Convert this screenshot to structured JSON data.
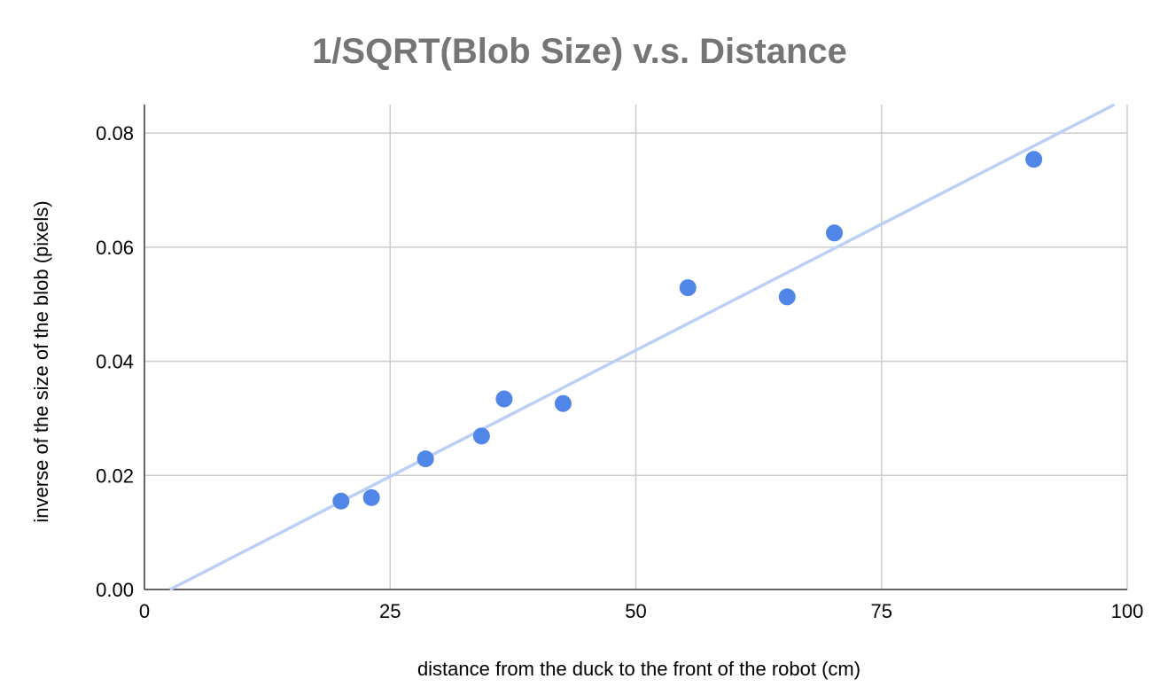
{
  "chart_data": {
    "type": "scatter",
    "title": "1/SQRT(Blob Size) v.s. Distance",
    "xlabel": "distance from the duck to the front of the robot (cm)",
    "ylabel": "inverse of the size of the blob (pixels)",
    "xlim": [
      0,
      100
    ],
    "ylim": [
      0,
      0.085
    ],
    "x_ticks": [
      0,
      25,
      50,
      75,
      100
    ],
    "x_tick_labels": [
      "0",
      "25",
      "50",
      "75",
      "100"
    ],
    "y_ticks": [
      0,
      0.02,
      0.04,
      0.06,
      0.08
    ],
    "y_tick_labels": [
      "0.00",
      "0.02",
      "0.04",
      "0.06",
      "0.08"
    ],
    "grid": true,
    "series": [
      {
        "points": [
          {
            "x": 20.0,
            "y": 0.0155
          },
          {
            "x": 23.1,
            "y": 0.0161
          },
          {
            "x": 28.6,
            "y": 0.0229
          },
          {
            "x": 34.3,
            "y": 0.0269
          },
          {
            "x": 36.6,
            "y": 0.0334
          },
          {
            "x": 42.6,
            "y": 0.0326
          },
          {
            "x": 55.3,
            "y": 0.0529
          },
          {
            "x": 65.4,
            "y": 0.0513
          },
          {
            "x": 70.2,
            "y": 0.0625
          },
          {
            "x": 90.5,
            "y": 0.0754
          }
        ],
        "color": "#4f86e8"
      }
    ],
    "trendline": {
      "type": "linear",
      "start": {
        "x": 2.6,
        "y": 0
      },
      "end": {
        "x": 98.7,
        "y": 0.085
      },
      "color": "#bcd0f5"
    }
  }
}
